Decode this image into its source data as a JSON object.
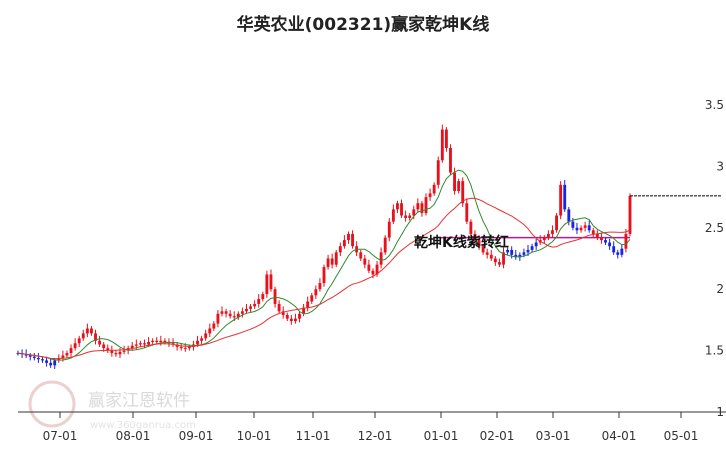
{
  "chart_data": {
    "type": "candlestick",
    "title": "华英农业(002321)赢家乾坤K线",
    "xlabel": "",
    "ylabel": "",
    "ylim": [
      1,
      3.55
    ],
    "y_ticks": [
      "1",
      "1.5",
      "2",
      "2.5",
      "3",
      "3.5"
    ],
    "x_ticks": [
      "07-01",
      "08-01",
      "09-01",
      "10-01",
      "11-01",
      "12-01",
      "01-01",
      "02-01",
      "03-01",
      "04-01",
      "05-01"
    ],
    "grid": false,
    "legend": "none",
    "colors": {
      "up": "#e8101b",
      "down": "#1a23e0",
      "ma_short": "#2e8b2e",
      "ma_long": "#e83030",
      "ref_line": "#c0168a",
      "last_price": "#000000"
    },
    "annotation": "乾坤K线紫转红",
    "reference_level": 2.42,
    "last_close_level": 2.76,
    "close_series": [
      1.48,
      1.47,
      1.46,
      1.45,
      1.44,
      1.43,
      1.42,
      1.4,
      1.38,
      1.42,
      1.44,
      1.46,
      1.48,
      1.52,
      1.56,
      1.6,
      1.64,
      1.68,
      1.64,
      1.58,
      1.55,
      1.52,
      1.5,
      1.48,
      1.47,
      1.49,
      1.5,
      1.52,
      1.54,
      1.55,
      1.56,
      1.55,
      1.57,
      1.58,
      1.57,
      1.58,
      1.57,
      1.56,
      1.55,
      1.53,
      1.52,
      1.52,
      1.53,
      1.55,
      1.58,
      1.6,
      1.64,
      1.68,
      1.72,
      1.8,
      1.82,
      1.8,
      1.78,
      1.77,
      1.8,
      1.82,
      1.84,
      1.86,
      1.88,
      1.92,
      1.96,
      2.12,
      2.0,
      1.88,
      1.82,
      1.79,
      1.76,
      1.74,
      1.76,
      1.8,
      1.85,
      1.9,
      1.95,
      2.0,
      2.05,
      2.18,
      2.25,
      2.2,
      2.3,
      2.35,
      2.4,
      2.45,
      2.35,
      2.3,
      2.25,
      2.2,
      2.15,
      2.12,
      2.2,
      2.3,
      2.42,
      2.55,
      2.65,
      2.7,
      2.6,
      2.58,
      2.6,
      2.65,
      2.7,
      2.62,
      2.75,
      2.78,
      2.85,
      3.05,
      3.3,
      3.15,
      2.95,
      2.8,
      2.88,
      2.7,
      2.55,
      2.45,
      2.4,
      2.35,
      2.3,
      2.28,
      2.25,
      2.22,
      2.2,
      2.3,
      2.32,
      2.28,
      2.26,
      2.28,
      2.3,
      2.32,
      2.35,
      2.38,
      2.4,
      2.42,
      2.45,
      2.48,
      2.6,
      2.85,
      2.65,
      2.55,
      2.5,
      2.48,
      2.5,
      2.52,
      2.48,
      2.45,
      2.42,
      2.4,
      2.38,
      2.35,
      2.3,
      2.28,
      2.33,
      2.45,
      2.76
    ]
  },
  "watermark": {
    "brand": "赢家江恩软件",
    "url": "www.360ganrua.com"
  }
}
